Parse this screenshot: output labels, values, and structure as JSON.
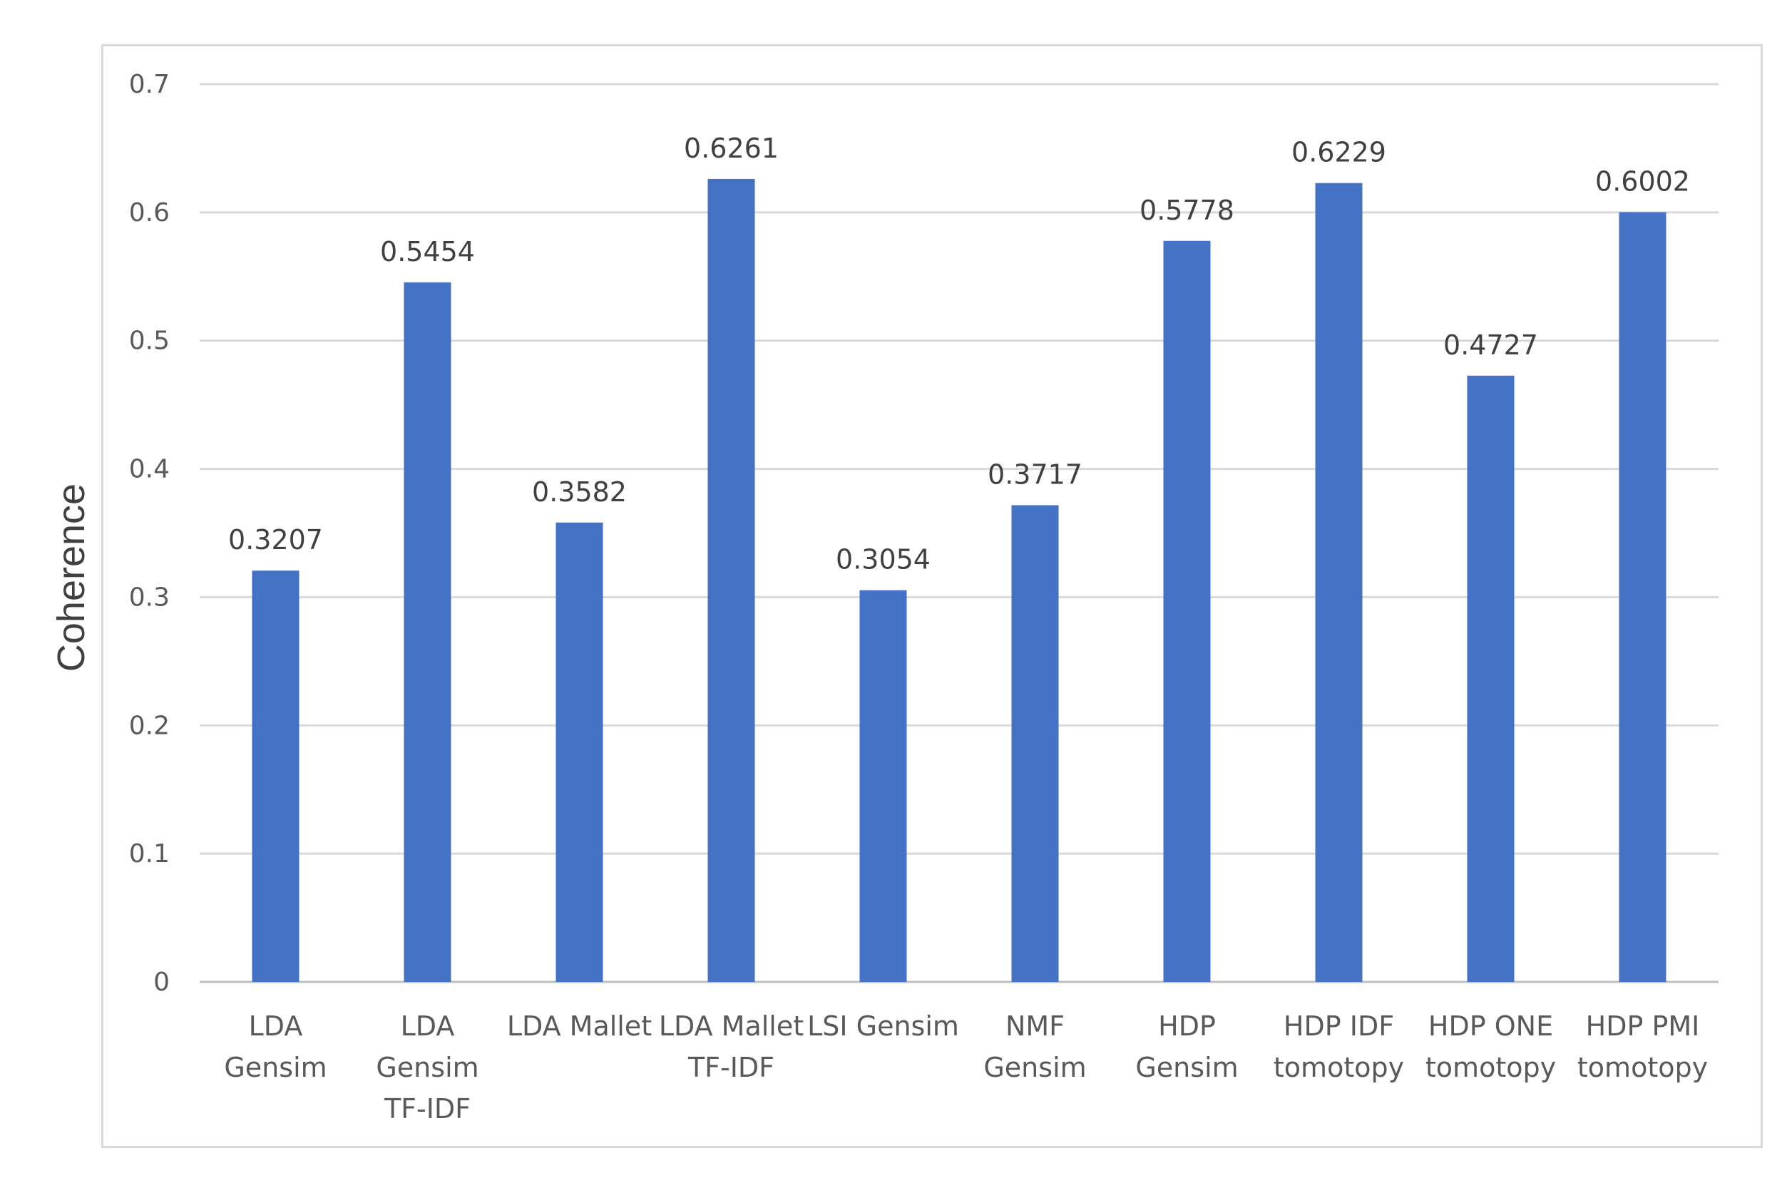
{
  "chart_data": {
    "type": "bar",
    "title": "",
    "xlabel": "",
    "ylabel": "Coherence",
    "ylim": [
      0,
      0.7
    ],
    "yticks": [
      "0",
      "0.1",
      "0.2",
      "0.3",
      "0.4",
      "0.5",
      "0.6",
      "0.7"
    ],
    "grid": true,
    "bar_color": "#4472c4",
    "categories": [
      [
        "LDA",
        "Gensim"
      ],
      [
        "LDA",
        "Gensim",
        "TF-IDF"
      ],
      [
        "LDA Mallet"
      ],
      [
        "LDA Mallet",
        "TF-IDF"
      ],
      [
        "LSI Gensim"
      ],
      [
        "NMF",
        "Gensim"
      ],
      [
        "HDP",
        "Gensim"
      ],
      [
        "HDP IDF",
        "tomotopy"
      ],
      [
        "HDP ONE",
        "tomotopy"
      ],
      [
        "HDP PMI",
        "tomotopy"
      ]
    ],
    "values": [
      0.3207,
      0.5454,
      0.3582,
      0.6261,
      0.3054,
      0.3717,
      0.5778,
      0.6229,
      0.4727,
      0.6002
    ],
    "value_labels": [
      "0.3207",
      "0.5454",
      "0.3582",
      "0.6261",
      "0.3054",
      "0.3717",
      "0.5778",
      "0.6229",
      "0.4727",
      "0.6002"
    ]
  }
}
